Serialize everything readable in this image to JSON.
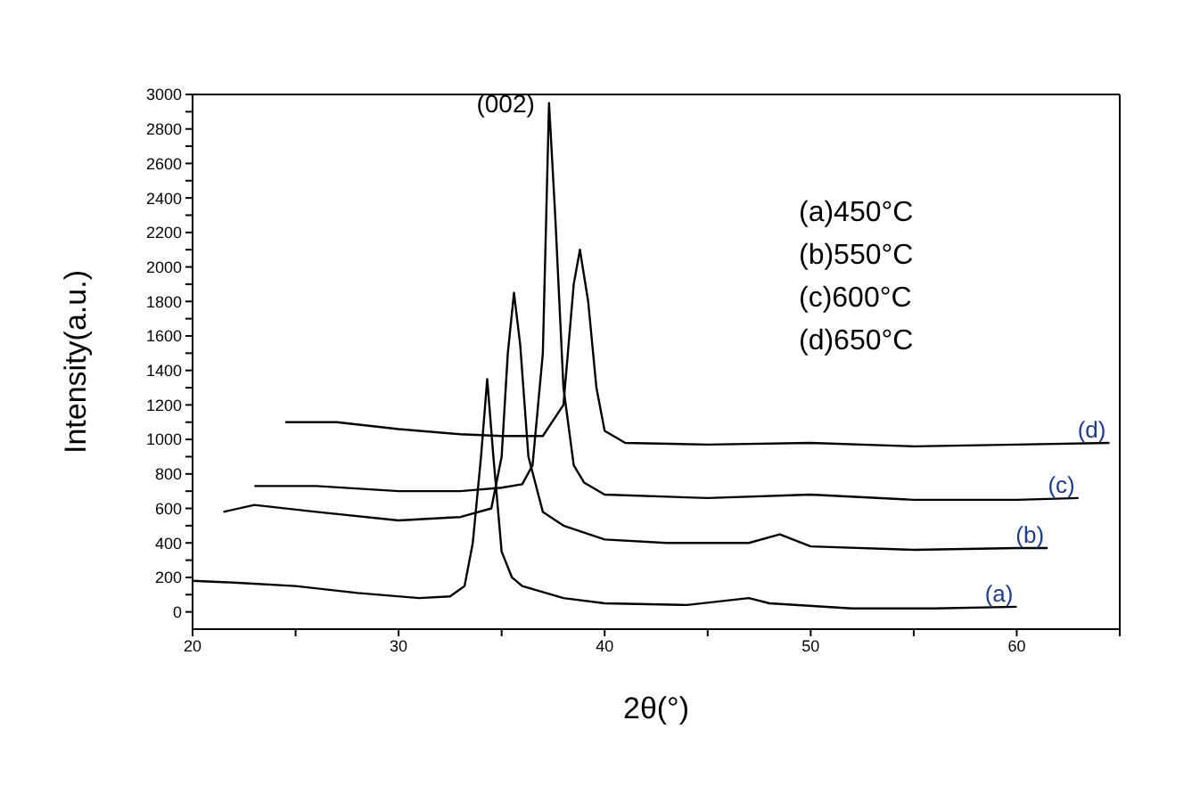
{
  "chart_data": {
    "type": "line",
    "xlabel": "2θ(°)",
    "ylabel": "Intensity(a.u.)",
    "xlim": [
      20,
      65
    ],
    "xticks": [
      20,
      {
        "value": 25,
        "label": null
      },
      30,
      {
        "value": 35,
        "label": null
      },
      40,
      {
        "value": 45,
        "label": null
      },
      50,
      {
        "value": 55,
        "label": null
      },
      60,
      {
        "value": 65,
        "label": null
      }
    ],
    "ylim": [
      -100,
      3000
    ],
    "yticks": [
      0,
      {
        "value": 100,
        "label": null
      },
      200,
      {
        "value": 300,
        "label": null
      },
      400,
      {
        "value": 500,
        "label": null
      },
      600,
      {
        "value": 700,
        "label": null
      },
      800,
      {
        "value": 900,
        "label": null
      },
      1000,
      {
        "value": 1100,
        "label": null
      },
      1200,
      {
        "value": 1300,
        "label": null
      },
      1400,
      {
        "value": 1500,
        "label": null
      },
      1600,
      {
        "value": 1700,
        "label": null
      },
      1800,
      {
        "value": 1900,
        "label": null
      },
      2000,
      {
        "value": 2100,
        "label": null
      },
      2200,
      {
        "value": 2300,
        "label": null
      },
      2400,
      {
        "value": 2500,
        "label": null
      },
      2600,
      {
        "value": 2700,
        "label": null
      },
      2800,
      {
        "value": 2900,
        "label": null
      },
      3000
    ],
    "marker": "none",
    "line_style": "solid",
    "annotations": [
      {
        "text": "(002)",
        "x": 37.3,
        "y": 2950
      },
      "(a)450°C",
      "(b)550°C",
      "(c)600°C",
      "(d)650°C"
    ],
    "series": [
      {
        "name": "(a)",
        "color": "#000000",
        "x": [
          20,
          22,
          25,
          28,
          31,
          32.5,
          33.2,
          33.6,
          34,
          34.3,
          34.6,
          35,
          35.5,
          36,
          38,
          40,
          44,
          47,
          48,
          52,
          56,
          60
        ],
        "values": [
          180,
          170,
          150,
          110,
          80,
          90,
          150,
          400,
          900,
          1350,
          900,
          350,
          200,
          150,
          80,
          50,
          40,
          80,
          50,
          20,
          20,
          30
        ]
      },
      {
        "name": "(b)",
        "color": "#000000",
        "x": [
          21.5,
          23,
          26,
          30,
          33,
          34.5,
          35,
          35.3,
          35.6,
          35.9,
          36.3,
          37,
          38,
          40,
          43,
          47,
          48.5,
          50,
          55,
          60,
          61.5
        ],
        "values": [
          580,
          620,
          580,
          530,
          550,
          600,
          900,
          1500,
          1850,
          1550,
          900,
          580,
          500,
          420,
          400,
          400,
          450,
          380,
          360,
          370,
          370
        ]
      },
      {
        "name": "(c)",
        "color": "#000000",
        "x": [
          23,
          26,
          30,
          33,
          35,
          36,
          36.5,
          37,
          37.3,
          37.6,
          38,
          38.5,
          39,
          40,
          45,
          50,
          55,
          60,
          63
        ],
        "values": [
          730,
          730,
          700,
          700,
          720,
          740,
          850,
          1500,
          2950,
          2300,
          1300,
          850,
          750,
          680,
          660,
          680,
          650,
          650,
          660
        ]
      },
      {
        "name": "(d)",
        "color": "#000000",
        "x": [
          24.5,
          27,
          30,
          33,
          35,
          37,
          38,
          38.5,
          38.8,
          39.2,
          39.6,
          40,
          41,
          45,
          50,
          55,
          60,
          64.5
        ],
        "values": [
          1100,
          1100,
          1060,
          1030,
          1020,
          1020,
          1200,
          1900,
          2100,
          1800,
          1300,
          1050,
          980,
          970,
          980,
          960,
          970,
          980
        ]
      }
    ]
  }
}
